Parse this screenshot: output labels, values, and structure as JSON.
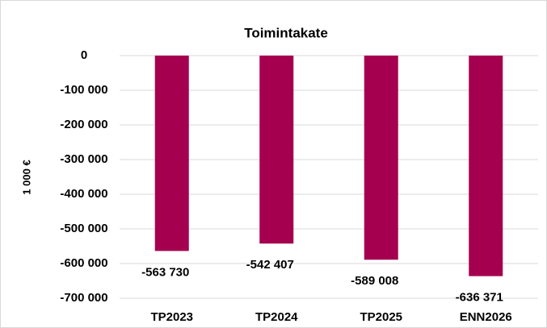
{
  "chart_data": {
    "type": "bar",
    "title": "Toimintakate",
    "y_label": "1 000 €",
    "categories": [
      "TP2023",
      "TP2024",
      "TP2025",
      "ENN2026"
    ],
    "values": [
      -563730,
      -542407,
      -589008,
      -636371
    ],
    "value_labels": [
      "-563 730",
      "-542 407",
      "-589 008",
      "-636 371"
    ],
    "color": "#a5004f",
    "ylim": [
      -700000,
      0
    ],
    "yticks": [
      0,
      {
        "value": -100000,
        "label": "-100 000"
      },
      {
        "value": -200000,
        "label": "-200 000"
      },
      {
        "value": -300000,
        "label": "-300 000"
      },
      {
        "value": -400000,
        "label": "-400 000"
      },
      {
        "value": -500000,
        "label": "-500 000"
      },
      {
        "value": -600000,
        "label": "-600 000"
      },
      {
        "value": -700000,
        "label": "-700 000"
      }
    ],
    "grid": true
  }
}
